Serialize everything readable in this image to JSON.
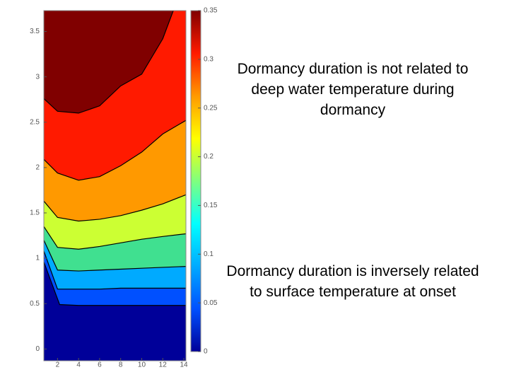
{
  "chart_data": {
    "type": "contour",
    "xlim": [
      0.7,
      14.2
    ],
    "ylim": [
      -0.13,
      3.73
    ],
    "xticks": [
      2,
      4,
      6,
      8,
      10,
      12,
      14
    ],
    "yticks": [
      0,
      0.5,
      1,
      1.5,
      2,
      2.5,
      3,
      3.5
    ],
    "fill_colors": [
      "#800000",
      "#ff1a00",
      "#ff9900",
      "#ccff33",
      "#40e090",
      "#00aaff",
      "#0050ff",
      "#000099"
    ],
    "contours": [
      {
        "x": [
          0.7,
          2,
          4,
          6,
          8,
          10,
          12,
          13
        ],
        "y": [
          2.76,
          2.62,
          2.6,
          2.68,
          2.9,
          3.03,
          3.42,
          3.73
        ]
      },
      {
        "x": [
          0.7,
          2,
          4,
          6,
          8,
          10,
          12,
          14.2
        ],
        "y": [
          2.09,
          1.94,
          1.86,
          1.9,
          2.02,
          2.17,
          2.37,
          2.52
        ]
      },
      {
        "x": [
          0.7,
          2,
          4,
          6,
          8,
          10,
          12,
          14.2
        ],
        "y": [
          1.63,
          1.45,
          1.41,
          1.43,
          1.47,
          1.53,
          1.6,
          1.7
        ]
      },
      {
        "x": [
          0.7,
          2,
          4,
          6,
          8,
          10,
          12,
          14.2
        ],
        "y": [
          1.35,
          1.12,
          1.1,
          1.13,
          1.17,
          1.21,
          1.24,
          1.27
        ]
      },
      {
        "x": [
          0.7,
          2,
          4,
          6,
          8,
          10,
          12,
          14.2
        ],
        "y": [
          1.2,
          0.87,
          0.86,
          0.87,
          0.88,
          0.89,
          0.9,
          0.91
        ]
      },
      {
        "x": [
          0.7,
          2,
          4,
          6,
          8,
          10,
          12,
          14.2
        ],
        "y": [
          1.08,
          0.66,
          0.66,
          0.66,
          0.67,
          0.67,
          0.67,
          0.67
        ]
      },
      {
        "x": [
          0.7,
          2.2,
          4,
          6,
          8,
          10,
          12,
          14.2
        ],
        "y": [
          0.96,
          0.49,
          0.48,
          0.48,
          0.48,
          0.48,
          0.48,
          0.48
        ]
      }
    ],
    "colorbar": {
      "clim": [
        0,
        0.35
      ],
      "ticks": [
        0,
        0.05,
        0.1,
        0.15,
        0.2,
        0.25,
        0.3,
        0.35
      ],
      "colormap": [
        "#000099",
        "#0050ff",
        "#00aaff",
        "#00ffff",
        "#7fff7f",
        "#ffff00",
        "#ff9900",
        "#ff1a00",
        "#800000"
      ]
    },
    "annotations": [
      "Dormancy duration is not related to deep water temperature during dormancy",
      "Dormancy duration is inversely related to surface temperature at onset"
    ]
  }
}
